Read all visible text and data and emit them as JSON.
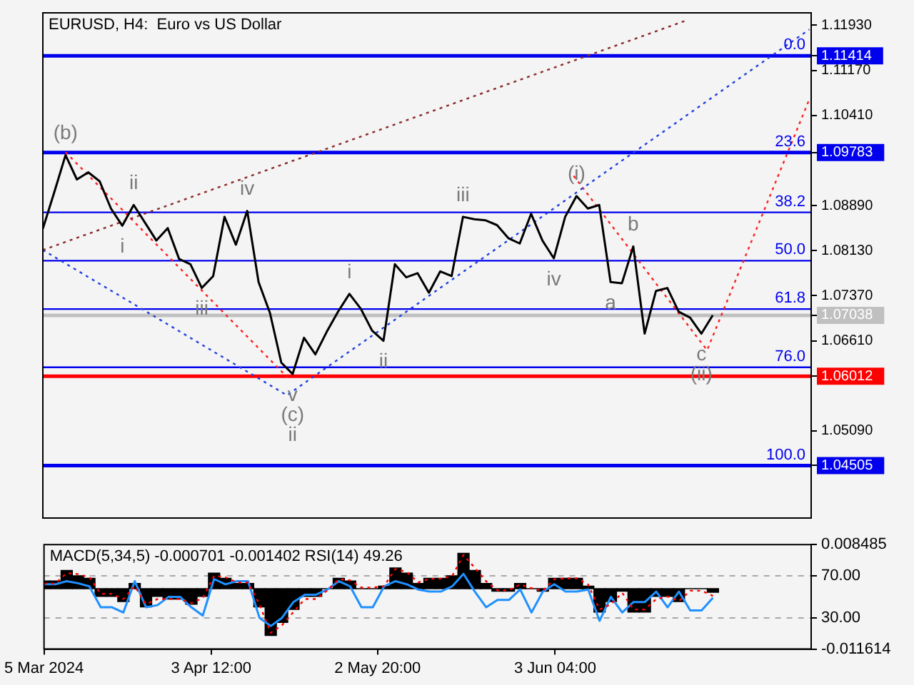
{
  "chart_data": [
    {
      "type": "line",
      "title": "EURUSD, H4:  Euro vs US Dollar",
      "xlim": [
        "2024-03-05",
        "2024-07-18T08:00"
      ],
      "tick_labels": "y",
      "ylim": [
        1.0362,
        1.1214
      ],
      "yticks": [
        {
          "value": 1.1193,
          "label": "1.11930"
        },
        {
          "value": 1.11414,
          "label": "1.11414"
        },
        {
          "value": 1.1117,
          "label": "1.11170"
        },
        {
          "value": 1.1041,
          "label": "1.10410"
        },
        {
          "value": 1.09783,
          "label": "1.09783"
        },
        {
          "value": 1.0889,
          "label": "1.08890"
        },
        {
          "value": 1.0813,
          "label": "1.08130"
        },
        {
          "value": 1.0737,
          "label": "1.07370"
        },
        {
          "value": 1.07038,
          "label": "1.07038"
        },
        {
          "value": 1.0661,
          "label": "1.06610"
        },
        {
          "value": 1.06012,
          "label": "1.06012"
        },
        {
          "value": 1.0509,
          "label": "1.05090"
        },
        {
          "value": 1.04505,
          "label": "1.04505"
        }
      ],
      "marker": "none",
      "x": [
        "2024-03-05",
        "2024-03-07",
        "2024-03-09",
        "2024-03-11",
        "2024-03-13",
        "2024-03-15",
        "2024-03-17",
        "2024-03-19",
        "2024-03-21",
        "2024-03-23",
        "2024-03-25",
        "2024-03-27",
        "2024-03-29",
        "2024-03-31",
        "2024-04-02",
        "2024-04-04",
        "2024-04-06",
        "2024-04-08",
        "2024-04-10",
        "2024-04-12",
        "2024-04-14",
        "2024-04-16",
        "2024-04-18",
        "2024-04-20",
        "2024-04-22",
        "2024-04-24",
        "2024-04-26",
        "2024-04-28",
        "2024-04-30",
        "2024-05-02",
        "2024-05-04",
        "2024-05-06",
        "2024-05-08",
        "2024-05-10",
        "2024-05-12",
        "2024-05-14",
        "2024-05-16",
        "2024-05-18",
        "2024-05-20",
        "2024-05-22",
        "2024-05-24",
        "2024-05-26",
        "2024-05-28",
        "2024-05-30",
        "2024-06-01",
        "2024-06-03",
        "2024-06-05",
        "2024-06-07",
        "2024-06-09",
        "2024-06-11",
        "2024-06-13",
        "2024-06-15",
        "2024-06-17",
        "2024-06-19",
        "2024-06-21",
        "2024-06-23",
        "2024-06-25",
        "2024-06-27",
        "2024-06-29",
        "2024-07-01"
      ],
      "series": [
        {
          "color": "#000000",
          "values": [
            1.085,
            1.0911,
            1.0974,
            1.0933,
            1.0945,
            1.093,
            1.0884,
            1.0855,
            1.089,
            1.086,
            1.083,
            1.0851,
            1.0799,
            1.079,
            1.075,
            1.077,
            1.087,
            1.0823,
            1.088,
            1.076,
            1.0708,
            1.0624,
            1.0605,
            1.0666,
            1.0638,
            1.0676,
            1.071,
            1.074,
            1.0715,
            1.0678,
            1.0661,
            1.079,
            1.0768,
            1.0775,
            1.0742,
            1.0778,
            1.077,
            1.087,
            1.0866,
            1.0864,
            1.0856,
            1.0834,
            1.0825,
            1.0875,
            1.083,
            1.08,
            1.087,
            1.0905,
            1.0884,
            1.089,
            1.076,
            1.0758,
            1.082,
            1.0673,
            1.0745,
            1.075,
            1.071,
            1.07,
            1.0673,
            1.0704
          ]
        },
        {
          "type": "line",
          "color": "#8b2a2a",
          "line_style": "dotted",
          "x": [
            "2024-03-05",
            "2024-06-26"
          ],
          "values": [
            1.0814,
            1.12
          ]
        },
        {
          "type": "line",
          "color": "#2040e0",
          "line_style": "dotted",
          "x": [
            "2024-03-05",
            "2024-04-17",
            "2024-07-18"
          ],
          "values": [
            1.0814,
            1.0569,
            1.1186
          ]
        },
        {
          "type": "line",
          "color": "#ff2020",
          "line_style": "dotted",
          "x": [
            "2024-03-09",
            "2024-04-17",
            "2024-05-15",
            "2024-06-06T12:00",
            "2024-06-30",
            "2024-07-18"
          ],
          "values": [
            1.0979,
            1.06,
            null,
            1.0939,
            1.0645,
            1.1068
          ]
        }
      ],
      "ref_lines": [
        {
          "axis": "y",
          "value": 1.11414,
          "color": "#0000ee"
        },
        {
          "axis": "y",
          "value": 1.09783,
          "color": "#0000ee"
        },
        {
          "axis": "y",
          "value": 1.08775,
          "color": "#0000ee"
        },
        {
          "axis": "y",
          "value": 1.0796,
          "color": "#0000ee"
        },
        {
          "axis": "y",
          "value": 1.07144,
          "color": "#0000ee"
        },
        {
          "axis": "y",
          "value": 1.06163,
          "color": "#0000ee"
        },
        {
          "axis": "y",
          "value": 1.04505,
          "color": "#0000ee"
        },
        {
          "axis": "y",
          "value": 1.07038,
          "color": "#c0c0c0"
        },
        {
          "axis": "y",
          "value": 1.06012,
          "color": "#ff0000"
        }
      ],
      "annotations": [
        {
          "text": "0.0",
          "x": "2024-07-18T08:00",
          "y": 1.11414
        },
        {
          "text": "23.6",
          "x": "2024-07-18T08:00",
          "y": 1.09783
        },
        {
          "text": "38.2",
          "x": "2024-07-18T08:00",
          "y": 1.08775
        },
        {
          "text": "50.0",
          "x": "2024-07-18T08:00",
          "y": 1.0796
        },
        {
          "text": "61.8",
          "x": "2024-07-18T08:00",
          "y": 1.07144
        },
        {
          "text": "76.0",
          "x": "2024-07-18T08:00",
          "y": 1.06163
        },
        {
          "text": "100.0",
          "x": "2024-07-18T08:00",
          "y": 1.04505
        },
        {
          "text": "(b)",
          "x": "2024-03-09",
          "y": 1.0974
        },
        {
          "text": "ii",
          "x": "2024-03-21",
          "y": 1.089
        },
        {
          "text": "i",
          "x": "2024-03-19",
          "y": 1.0855
        },
        {
          "text": "iii",
          "x": "2024-04-02",
          "y": 1.075
        },
        {
          "text": "iv",
          "x": "2024-04-10",
          "y": 1.088
        },
        {
          "text": "v",
          "x": "2024-04-18",
          "y": 1.0605
        },
        {
          "text": "(c)",
          "x": "2024-04-18",
          "y": 1.0605
        },
        {
          "text": "ii",
          "x": "2024-04-18",
          "y": 1.0605
        },
        {
          "text": "i",
          "x": "2024-04-28",
          "y": 1.074
        },
        {
          "text": "ii",
          "x": "2024-05-04",
          "y": 1.0661
        },
        {
          "text": "iii",
          "x": "2024-05-18",
          "y": 1.087
        },
        {
          "text": "iv",
          "x": "2024-06-03",
          "y": 1.08
        },
        {
          "text": "(i)",
          "x": "2024-06-07",
          "y": 1.0905
        },
        {
          "text": "a",
          "x": "2024-06-13",
          "y": 1.076
        },
        {
          "text": "b",
          "x": "2024-06-17",
          "y": 1.082
        },
        {
          "text": "c",
          "x": "2024-06-29",
          "y": 1.0673
        },
        {
          "text": "(ii)",
          "x": "2024-06-29",
          "y": 1.0673
        }
      ]
    },
    {
      "type": "bar",
      "title": "MACD(5,34,5) -0.000701 -0.001402 RSI(14) 49.26",
      "xlim": [
        "2024-03-05",
        "2024-07-18T08:00"
      ],
      "xticks": [
        {
          "value": "2024-03-05",
          "label": "5 Mar 2024"
        },
        {
          "value": "2024-04-03T12:00",
          "label": "3 Apr 12:00"
        },
        {
          "value": "2024-05-02T20:00",
          "label": "2 May 20:00"
        },
        {
          "value": "2024-06-03T04:00",
          "label": "3 Jun 04:00"
        }
      ],
      "ylim": [
        0,
        100
      ],
      "yticks": [
        {
          "value": 70,
          "label": "70.00"
        },
        {
          "value": 30,
          "label": "30.00"
        }
      ],
      "y2lim": [
        -0.011614,
        0.008485
      ],
      "y2ticks": [
        0.008485,
        -0.011614
      ],
      "grid": "y",
      "marker": "none",
      "x": [
        "2024-03-05",
        "2024-03-07",
        "2024-03-09",
        "2024-03-11",
        "2024-03-13",
        "2024-03-15",
        "2024-03-17",
        "2024-03-19",
        "2024-03-21",
        "2024-03-23",
        "2024-03-25",
        "2024-03-27",
        "2024-03-29",
        "2024-03-31",
        "2024-04-02",
        "2024-04-04",
        "2024-04-06",
        "2024-04-08",
        "2024-04-10",
        "2024-04-12",
        "2024-04-14",
        "2024-04-16",
        "2024-04-18",
        "2024-04-20",
        "2024-04-22",
        "2024-04-24",
        "2024-04-26",
        "2024-04-28",
        "2024-04-30",
        "2024-05-02",
        "2024-05-04",
        "2024-05-06",
        "2024-05-08",
        "2024-05-10",
        "2024-05-12",
        "2024-05-14",
        "2024-05-16",
        "2024-05-18",
        "2024-05-20",
        "2024-05-22",
        "2024-05-24",
        "2024-05-26",
        "2024-05-28",
        "2024-05-30",
        "2024-06-01",
        "2024-06-03",
        "2024-06-05",
        "2024-06-07",
        "2024-06-09",
        "2024-06-11",
        "2024-06-13",
        "2024-06-15",
        "2024-06-17",
        "2024-06-19",
        "2024-06-21",
        "2024-06-23",
        "2024-06-25",
        "2024-06-27",
        "2024-06-29",
        "2024-07-01"
      ],
      "series": [
        {
          "type": "bar",
          "axis": "y2",
          "color": "#000000",
          "values": [
            0.0015,
            0.0015,
            0.0035,
            0.0025,
            0.002,
            -0.0015,
            -0.0015,
            -0.0025,
            0.001,
            -0.0035,
            -0.0015,
            -0.002,
            -0.002,
            -0.003,
            -0.0015,
            0.003,
            0.002,
            0.001,
            0.001,
            -0.0035,
            -0.009,
            -0.0065,
            -0.004,
            -0.0015,
            -0.0015,
            0,
            0.002,
            0.0015,
            0,
            0,
            0.0005,
            0.004,
            0.003,
            0.001,
            0.002,
            0.002,
            0.0025,
            0.0068,
            0.0035,
            0.001,
            -0.0005,
            -0.0005,
            0.001,
            0,
            -0.0005,
            0.002,
            0.002,
            0.002,
            0.0005,
            -0.0045,
            -0.0025,
            -0.0005,
            -0.0045,
            -0.0045,
            -0.0015,
            -0.0015,
            -0.0025,
            0,
            0,
            -0.0007
          ]
        },
        {
          "type": "line",
          "axis": "y2",
          "color": "#ff0000",
          "line_style": "dotted",
          "values": [
            0.001,
            0.001,
            0.003,
            0.0028,
            0.0022,
            -0.001,
            -0.001,
            -0.002,
            0.0005,
            -0.003,
            -0.002,
            -0.002,
            -0.002,
            -0.0028,
            -0.0018,
            0.0025,
            0.0022,
            0.0012,
            0.0012,
            -0.003,
            -0.0085,
            -0.007,
            -0.0045,
            -0.002,
            -0.002,
            -0.0003,
            0.0018,
            0.0016,
            0.0002,
            0.0002,
            0.0005,
            0.0038,
            0.0032,
            0.0012,
            0.0019,
            0.0019,
            0.0024,
            0.0065,
            0.004,
            0.0014,
            -0.0003,
            -0.0003,
            0.0008,
            0.0001,
            -0.0004,
            0.0018,
            0.002,
            0.002,
            0.0008,
            -0.004,
            -0.003,
            -0.0008,
            -0.004,
            -0.004,
            -0.002,
            -0.0015,
            -0.0024,
            -0.0004,
            -0.0004,
            -0.0014
          ]
        },
        {
          "type": "line",
          "color": "#1e90ff",
          "values": [
            62,
            62,
            65,
            63,
            60,
            40,
            40,
            35,
            65,
            40,
            42,
            50,
            50,
            40,
            32,
            67,
            62,
            65,
            65,
            30,
            22,
            30,
            45,
            52,
            52,
            57,
            65,
            60,
            40,
            40,
            60,
            65,
            62,
            57,
            55,
            55,
            60,
            72,
            55,
            40,
            47,
            47,
            57,
            35,
            55,
            62,
            55,
            55,
            57,
            27,
            50,
            35,
            45,
            45,
            55,
            40,
            55,
            37,
            37,
            49
          ]
        }
      ]
    }
  ]
}
